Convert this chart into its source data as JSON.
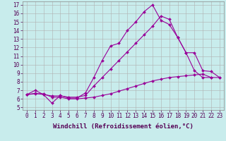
{
  "bg_color": "#c8ecec",
  "line_color": "#990099",
  "grid_color": "#b0b0b0",
  "xlim_min": -0.5,
  "xlim_max": 23.5,
  "ylim_min": 4.7,
  "ylim_max": 17.4,
  "xticks": [
    0,
    1,
    2,
    3,
    4,
    5,
    6,
    7,
    8,
    9,
    10,
    11,
    12,
    13,
    14,
    15,
    16,
    17,
    18,
    19,
    20,
    21,
    22,
    23
  ],
  "yticks": [
    5,
    6,
    7,
    8,
    9,
    10,
    11,
    12,
    13,
    14,
    15,
    16,
    17
  ],
  "line1_x": [
    0,
    1,
    2,
    3,
    4,
    5,
    6,
    7,
    8,
    9,
    10,
    11,
    12,
    13,
    14,
    15,
    16,
    17,
    18,
    19,
    20,
    21,
    22
  ],
  "line1_y": [
    6.5,
    7.0,
    6.5,
    5.5,
    6.4,
    6.1,
    6.1,
    6.7,
    8.5,
    10.5,
    12.2,
    12.5,
    14.0,
    15.0,
    16.2,
    17.0,
    15.2,
    14.7,
    13.2,
    11.4,
    9.3,
    8.5,
    8.5
  ],
  "line2_x": [
    0,
    1,
    2,
    3,
    4,
    5,
    6,
    7,
    8,
    9,
    10,
    11,
    12,
    13,
    14,
    15,
    16,
    17,
    18,
    19,
    20,
    21,
    22,
    23
  ],
  "line2_y": [
    6.5,
    6.65,
    6.5,
    6.35,
    6.35,
    6.2,
    6.2,
    6.4,
    7.5,
    8.5,
    9.5,
    10.5,
    11.5,
    12.5,
    13.5,
    14.5,
    15.7,
    15.3,
    13.2,
    11.4,
    11.4,
    9.3,
    9.2,
    8.5
  ],
  "line3_x": [
    0,
    1,
    2,
    3,
    4,
    5,
    6,
    7,
    8,
    9,
    10,
    11,
    12,
    13,
    14,
    15,
    16,
    17,
    18,
    19,
    20,
    21,
    22,
    23
  ],
  "line3_y": [
    6.5,
    6.6,
    6.6,
    6.2,
    6.2,
    6.0,
    6.0,
    6.1,
    6.2,
    6.4,
    6.6,
    6.9,
    7.2,
    7.5,
    7.8,
    8.1,
    8.3,
    8.5,
    8.6,
    8.7,
    8.8,
    8.9,
    8.5,
    8.5
  ],
  "xlabel": "Windchill (Refroidissement éolien,°C)",
  "tick_fontsize": 5.5,
  "xlabel_fontsize": 6.5,
  "marker": "D",
  "markersize": 2.0,
  "linewidth": 0.8
}
